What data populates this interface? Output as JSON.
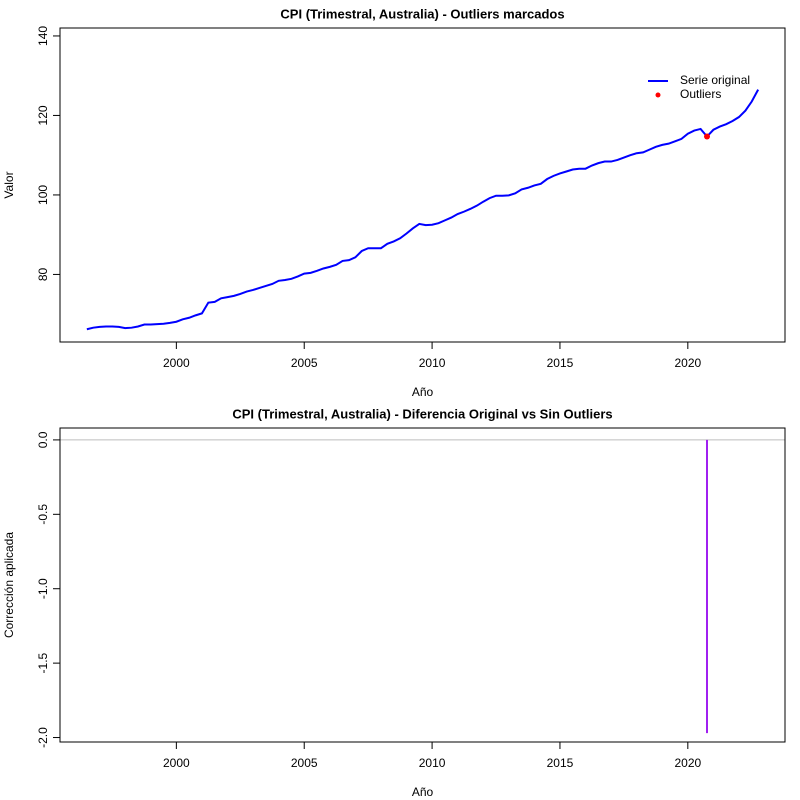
{
  "chart_data": [
    {
      "type": "line",
      "title": "CPI (Trimestral, Australia) - Outliers marcados",
      "x_label": "Año",
      "y_label": "Valor",
      "x": [
        1996.5,
        1996.75,
        1997,
        1997.25,
        1997.5,
        1997.75,
        1998,
        1998.25,
        1998.5,
        1998.75,
        1999,
        1999.25,
        1999.5,
        1999.75,
        2000,
        2000.25,
        2000.5,
        2000.75,
        2001,
        2001.25,
        2001.5,
        2001.75,
        2002,
        2002.25,
        2002.5,
        2002.75,
        2003,
        2003.25,
        2003.5,
        2003.75,
        2004,
        2004.25,
        2004.5,
        2004.75,
        2005,
        2005.25,
        2005.5,
        2005.75,
        2006,
        2006.25,
        2006.5,
        2006.75,
        2007,
        2007.25,
        2007.5,
        2007.75,
        2008,
        2008.25,
        2008.5,
        2008.75,
        2009,
        2009.25,
        2009.5,
        2009.75,
        2010,
        2010.25,
        2010.5,
        2010.75,
        2011,
        2011.25,
        2011.5,
        2011.75,
        2012,
        2012.25,
        2012.5,
        2012.75,
        2013,
        2013.25,
        2013.5,
        2013.75,
        2014,
        2014.25,
        2014.5,
        2014.75,
        2015,
        2015.25,
        2015.5,
        2015.75,
        2016,
        2016.25,
        2016.5,
        2016.75,
        2017,
        2017.25,
        2017.5,
        2017.75,
        2018,
        2018.25,
        2018.5,
        2018.75,
        2019,
        2019.25,
        2019.5,
        2019.75,
        2020,
        2020.25,
        2020.5,
        2020.75,
        2021,
        2021.25,
        2021.5,
        2021.75,
        2022,
        2022.25,
        2022.5,
        2022.75
      ],
      "series": [
        {
          "name": "Serie original",
          "color": "#0000ff",
          "mode": "line",
          "values": [
            66.2,
            66.6,
            66.8,
            66.9,
            66.9,
            66.8,
            66.5,
            66.6,
            66.9,
            67.4,
            67.4,
            67.5,
            67.6,
            67.8,
            68.1,
            68.7,
            69.1,
            69.7,
            70.2,
            72.9,
            73.1,
            74.0,
            74.3,
            74.6,
            75.1,
            75.7,
            76.1,
            76.6,
            77.1,
            77.6,
            78.4,
            78.6,
            78.9,
            79.5,
            80.2,
            80.4,
            80.9,
            81.5,
            81.9,
            82.4,
            83.4,
            83.6,
            84.3,
            85.9,
            86.6,
            86.6,
            86.6,
            87.7,
            88.3,
            89.1,
            90.3,
            91.6,
            92.7,
            92.4,
            92.5,
            92.9,
            93.6,
            94.3,
            95.2,
            95.8,
            96.5,
            97.3,
            98.3,
            99.2,
            99.8,
            99.8,
            99.9,
            100.4,
            101.4,
            101.8,
            102.4,
            102.8,
            104.0,
            104.8,
            105.4,
            105.9,
            106.4,
            106.6,
            106.6,
            107.4,
            108.0,
            108.4,
            108.4,
            108.8,
            109.4,
            110.0,
            110.5,
            110.7,
            111.4,
            112.1,
            112.6,
            112.9,
            113.5,
            114.1,
            115.4,
            116.2,
            116.6,
            114.7,
            116.4,
            117.2,
            117.8,
            118.6,
            119.6,
            121.2,
            123.5,
            126.5
          ]
        },
        {
          "name": "Outliers",
          "color": "#ff0000",
          "mode": "points",
          "x": [
            2020.75
          ],
          "values": [
            114.7
          ]
        }
      ],
      "xlim": [
        1995.45,
        2023.8
      ],
      "xticks": [
        2000,
        2005,
        2010,
        2015,
        2020
      ],
      "ylim": [
        63,
        142
      ],
      "yticks": [
        80,
        100,
        120,
        140
      ],
      "legend": "top-right"
    },
    {
      "type": "stem",
      "title": "CPI (Trimestral, Australia) - Diferencia Original vs Sin Outliers",
      "x_label": "Año",
      "y_label": "Corrección aplicada",
      "x": [
        2020.75
      ],
      "series": [
        {
          "color": "#a020f0",
          "values": [
            -1.97
          ]
        }
      ],
      "hline": 0,
      "hline_color": "#bebebe",
      "xlim": [
        1995.45,
        2023.8
      ],
      "xticks": [
        2000,
        2005,
        2010,
        2015,
        2020
      ],
      "ylim": [
        -2.03,
        0.08
      ],
      "yticks": [
        {
          "value": 0,
          "label": "0.0"
        },
        -0.5,
        {
          "value": -1,
          "label": "-1.0"
        },
        -1.5,
        {
          "value": -2,
          "label": "-2.0"
        }
      ]
    }
  ]
}
